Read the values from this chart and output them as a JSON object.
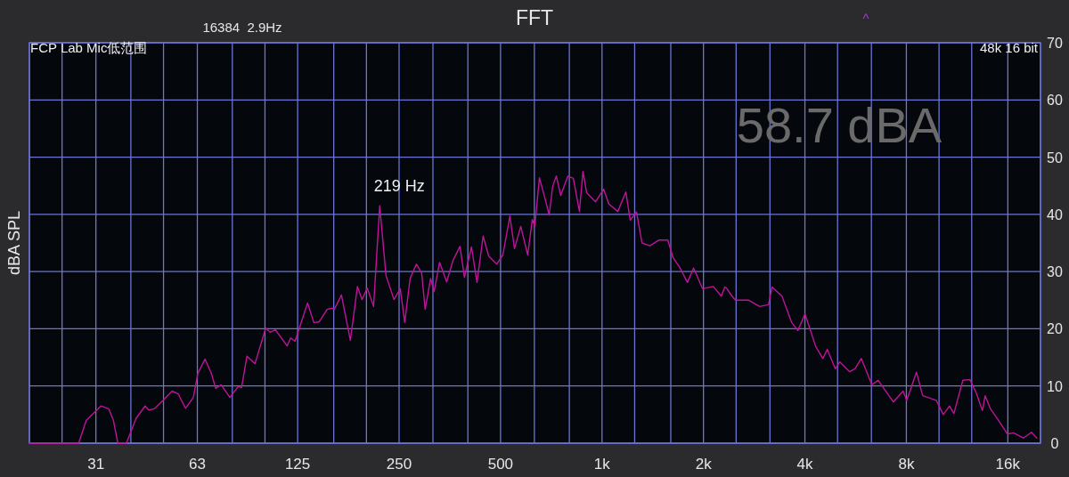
{
  "chart_data": {
    "type": "line",
    "title": "FFT",
    "ylabel": "dBA SPL",
    "log": "x",
    "grid": true,
    "xlim": [
      20,
      20000
    ],
    "xticks": [
      {
        "value": 20,
        "label": null
      },
      {
        "value": 25,
        "label": null
      },
      {
        "value": 31.5,
        "label": "31"
      },
      {
        "value": 40,
        "label": null
      },
      {
        "value": 50,
        "label": null
      },
      {
        "value": 63,
        "label": "63"
      },
      {
        "value": 80,
        "label": null
      },
      {
        "value": 100,
        "label": null
      },
      {
        "value": 125,
        "label": "125"
      },
      {
        "value": 160,
        "label": null
      },
      {
        "value": 200,
        "label": null
      },
      {
        "value": 250,
        "label": "250"
      },
      {
        "value": 315,
        "label": null
      },
      {
        "value": 400,
        "label": null
      },
      {
        "value": 500,
        "label": "500"
      },
      {
        "value": 630,
        "label": null
      },
      {
        "value": 800,
        "label": null
      },
      {
        "value": 1000,
        "label": "1k"
      },
      {
        "value": 1250,
        "label": null
      },
      {
        "value": 1600,
        "label": null
      },
      {
        "value": 2000,
        "label": "2k"
      },
      {
        "value": 2500,
        "label": null
      },
      {
        "value": 3150,
        "label": null
      },
      {
        "value": 4000,
        "label": "4k"
      },
      {
        "value": 5000,
        "label": null
      },
      {
        "value": 6300,
        "label": null
      },
      {
        "value": 8000,
        "label": "8k"
      },
      {
        "value": 10000,
        "label": null
      },
      {
        "value": 12500,
        "label": null
      },
      {
        "value": 16000,
        "label": "16k"
      },
      {
        "value": 20000,
        "label": null
      }
    ],
    "ylim": [
      0,
      70
    ],
    "yticks": [
      0,
      10,
      20,
      30,
      40,
      50,
      60,
      70
    ],
    "series": [
      {
        "color": "#c0139b",
        "x": [
          20,
          28.0,
          29.5,
          32.6,
          34.4,
          35.5,
          36.6,
          38.8,
          41.5,
          44.1,
          45.2,
          46.9,
          49.9,
          53.0,
          55.3,
          58.1,
          61.3,
          63.2,
          66.4,
          69.3,
          71.4,
          74.1,
          78.7,
          83.2,
          85.2,
          88.4,
          93.4,
          100.5,
          103.6,
          107.4,
          112.8,
          116.3,
          119.2,
          122.8,
          133.8,
          139.6,
          144.8,
          152.9,
          157.7,
          160.6,
          168.6,
          179.2,
          188.1,
          194.0,
          201.2,
          210,
          219,
          228.6,
          241.4,
          252,
          259.8,
          269.6,
          281.4,
          291.6,
          298.8,
          310,
          317.6,
          329.6,
          346,
          361,
          379,
          390.6,
          410,
          425.6,
          444,
          461,
          487,
          508,
          533,
          550,
          574,
          602,
          621,
          632,
          652,
          676,
          697,
          714,
          732,
          754,
          792,
          822,
          857,
          878,
          900,
          957,
          1011,
          1048,
          1114,
          1177,
          1213,
          1266,
          1314,
          1387,
          1474,
          1567,
          1626,
          1706,
          1792,
          1870,
          1988,
          2138,
          2260,
          2314,
          2342,
          2416,
          2488,
          2726,
          2936,
          3120,
          3196,
          3418,
          3654,
          3812,
          4002,
          4306,
          4522,
          4660,
          4924,
          5078,
          5430,
          5630,
          5878,
          6322,
          6598,
          7316,
          7824,
          8018,
          8572,
          8942,
          9810,
          10292,
          10744,
          11070,
          11768,
          12352,
          12894,
          13448,
          13706,
          14208,
          15012,
          15956,
          16642,
          17794,
          18800,
          19512
        ],
        "values": [
          0,
          0,
          4.0,
          6.5,
          6.0,
          4.0,
          0,
          0,
          4.4,
          6.5,
          5.8,
          6.0,
          7.5,
          9.1,
          8.6,
          6.1,
          8.0,
          12.2,
          14.7,
          12.2,
          9.6,
          10.2,
          8.0,
          9.9,
          9.7,
          15.2,
          13.9,
          20.1,
          19.4,
          19.8,
          18.1,
          17.0,
          18.4,
          17.8,
          24.5,
          21.1,
          21.2,
          23.4,
          23.6,
          23.4,
          25.9,
          18.0,
          27.4,
          25.1,
          27.1,
          23.9,
          41.5,
          29.3,
          25.1,
          27.0,
          21.1,
          28.8,
          31.3,
          29.8,
          23.4,
          28.8,
          26.5,
          31.6,
          28.2,
          31.9,
          34.4,
          29.0,
          34.3,
          28.1,
          36.2,
          32.7,
          31.3,
          32.9,
          39.7,
          34.0,
          37.9,
          32.9,
          39.1,
          37.9,
          46.4,
          43.0,
          39.9,
          44.9,
          46.7,
          43.3,
          46.7,
          46.3,
          40.5,
          47.5,
          43.8,
          42.2,
          44.4,
          41.8,
          40.5,
          43.9,
          39.0,
          40.4,
          35.0,
          34.5,
          35.5,
          35.5,
          32.4,
          30.6,
          28.1,
          30.6,
          27.0,
          27.4,
          25.7,
          27.3,
          27.1,
          25.9,
          25.0,
          25.0,
          23.9,
          24.2,
          27.3,
          25.7,
          21.1,
          19.7,
          22.6,
          16.9,
          14.8,
          16.4,
          13.0,
          14.2,
          12.5,
          13.0,
          14.8,
          10.2,
          11.0,
          7.2,
          9.1,
          7.5,
          12.4,
          8.3,
          7.5,
          5.0,
          6.5,
          5.2,
          11.0,
          11.1,
          8.8,
          5.7,
          8.3,
          6.0,
          4.0,
          1.6,
          1.8,
          0.9,
          1.9,
          0.9
        ]
      }
    ],
    "annotations": [
      "16384  2.9Hz",
      "^",
      "FCP Lab Mic低范围",
      "48k 16 bit",
      "58.7 dBA",
      {
        "text": "219 Hz",
        "x": 219,
        "y": 41.5
      }
    ]
  }
}
